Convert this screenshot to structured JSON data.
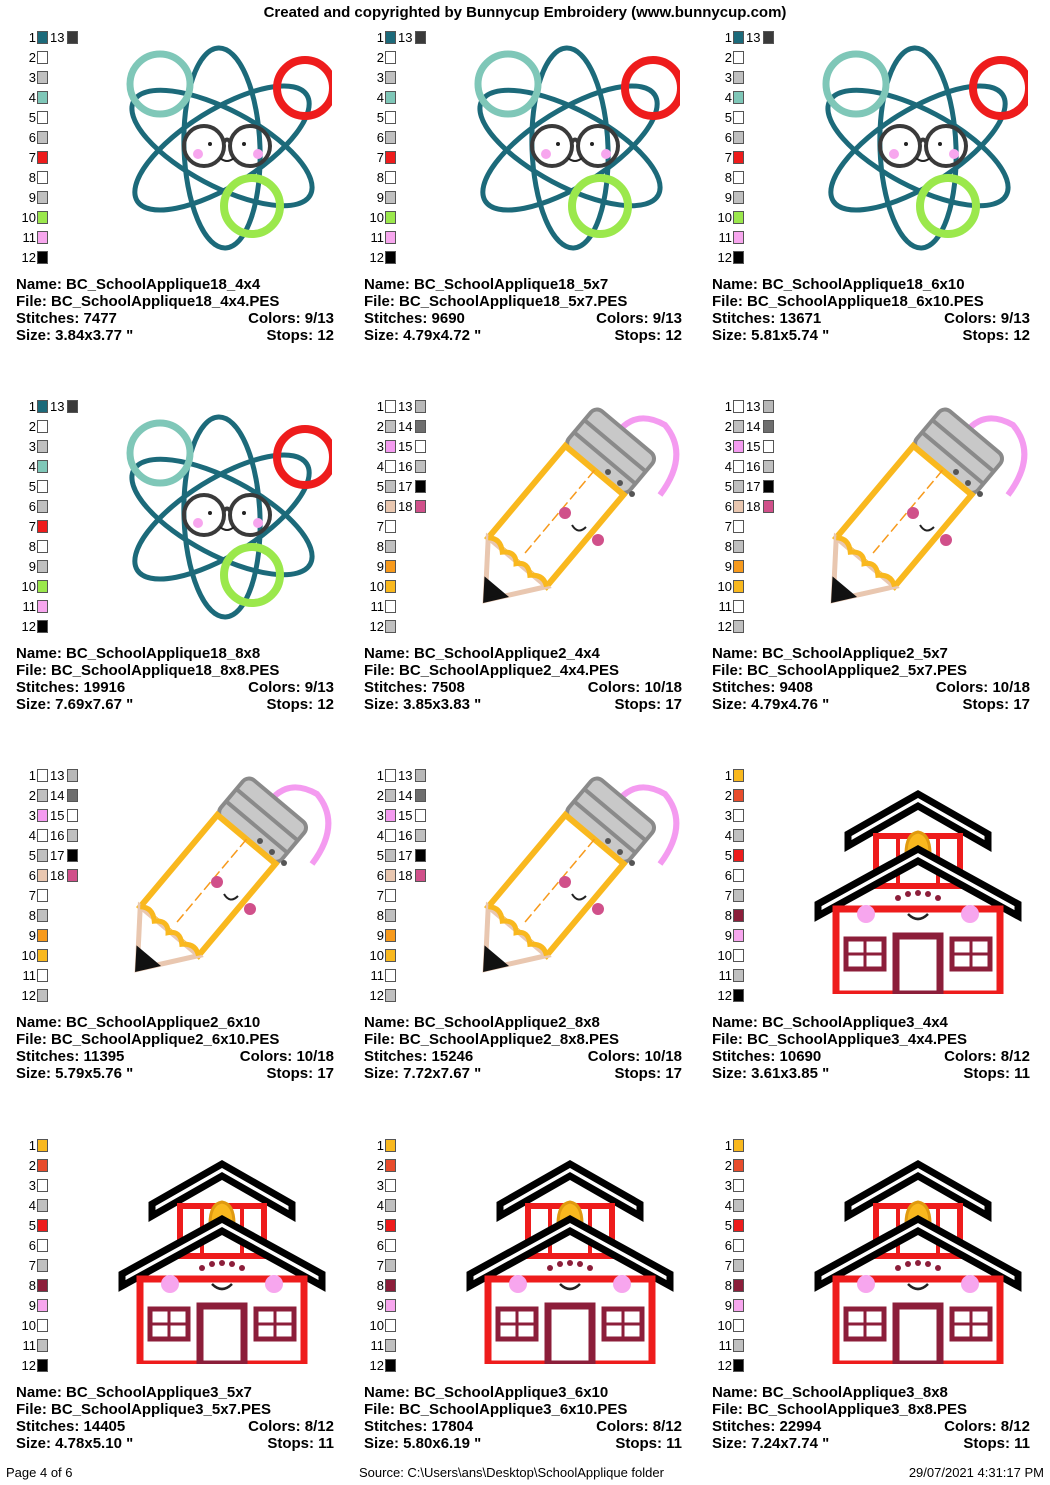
{
  "header": "Created and copyrighted by Bunnycup Embroidery (www.bunnycup.com)",
  "labels": {
    "name": "Name:",
    "file": "File:",
    "stitches": "Stitches:",
    "colors": "Colors:",
    "size": "Size:",
    "stops": "Stops:"
  },
  "palettes": {
    "atom": [
      {
        "n": "1",
        "c": "#1c6a7a",
        "n2": "13",
        "c2": "#3a3a3a"
      },
      {
        "n": "2",
        "c": "#ffffff"
      },
      {
        "n": "3",
        "c": "#c0c0c0"
      },
      {
        "n": "4",
        "c": "#7fc7b8"
      },
      {
        "n": "5",
        "c": "#ffffff"
      },
      {
        "n": "6",
        "c": "#c0c0c0"
      },
      {
        "n": "7",
        "c": "#ee1c1c"
      },
      {
        "n": "8",
        "c": "#ffffff"
      },
      {
        "n": "9",
        "c": "#c0c0c0"
      },
      {
        "n": "10",
        "c": "#9be84c"
      },
      {
        "n": "11",
        "c": "#f7a6ee"
      },
      {
        "n": "12",
        "c": "#000000"
      }
    ],
    "pencil": [
      {
        "n": "1",
        "c": "#ffffff",
        "n2": "13",
        "c2": "#b8b8b8"
      },
      {
        "n": "2",
        "c": "#c0c0c0",
        "n2": "14",
        "c2": "#6e6e6e"
      },
      {
        "n": "3",
        "c": "#f49bf0",
        "n2": "15",
        "c2": "#ffffff"
      },
      {
        "n": "4",
        "c": "#ffffff",
        "n2": "16",
        "c2": "#c0c0c0"
      },
      {
        "n": "5",
        "c": "#c0c0c0",
        "n2": "17",
        "c2": "#000000"
      },
      {
        "n": "6",
        "c": "#e9c7b0",
        "n2": "18",
        "c2": "#d0508a"
      },
      {
        "n": "7",
        "c": "#ffffff"
      },
      {
        "n": "8",
        "c": "#c0c0c0"
      },
      {
        "n": "9",
        "c": "#f79a1c"
      },
      {
        "n": "10",
        "c": "#f9b81e"
      },
      {
        "n": "11",
        "c": "#ffffff"
      },
      {
        "n": "12",
        "c": "#c0c0c0"
      }
    ],
    "school": [
      {
        "n": "1",
        "c": "#f9b81e"
      },
      {
        "n": "2",
        "c": "#e84c2c"
      },
      {
        "n": "3",
        "c": "#ffffff"
      },
      {
        "n": "4",
        "c": "#c0c0c0"
      },
      {
        "n": "5",
        "c": "#ee1c1c"
      },
      {
        "n": "6",
        "c": "#ffffff"
      },
      {
        "n": "7",
        "c": "#c0c0c0"
      },
      {
        "n": "8",
        "c": "#8c1e3a"
      },
      {
        "n": "9",
        "c": "#f7a6ee"
      },
      {
        "n": "10",
        "c": "#ffffff"
      },
      {
        "n": "11",
        "c": "#c0c0c0"
      },
      {
        "n": "12",
        "c": "#000000"
      }
    ]
  },
  "designs": [
    {
      "art": "atom",
      "name": "BC_SchoolApplique18_4x4",
      "file": "BC_SchoolApplique18_4x4.PES",
      "stitches": "7477",
      "colors": "9/13",
      "size": "3.84x3.77 \"",
      "stops": "12"
    },
    {
      "art": "atom",
      "name": "BC_SchoolApplique18_5x7",
      "file": "BC_SchoolApplique18_5x7.PES",
      "stitches": "9690",
      "colors": "9/13",
      "size": "4.79x4.72 \"",
      "stops": "12"
    },
    {
      "art": "atom",
      "name": "BC_SchoolApplique18_6x10",
      "file": "BC_SchoolApplique18_6x10.PES",
      "stitches": "13671",
      "colors": "9/13",
      "size": "5.81x5.74 \"",
      "stops": "12"
    },
    {
      "art": "atom",
      "name": "BC_SchoolApplique18_8x8",
      "file": "BC_SchoolApplique18_8x8.PES",
      "stitches": "19916",
      "colors": "9/13",
      "size": "7.69x7.67 \"",
      "stops": "12"
    },
    {
      "art": "pencil",
      "name": "BC_SchoolApplique2_4x4",
      "file": "BC_SchoolApplique2_4x4.PES",
      "stitches": "7508",
      "colors": "10/18",
      "size": "3.85x3.83 \"",
      "stops": "17"
    },
    {
      "art": "pencil",
      "name": "BC_SchoolApplique2_5x7",
      "file": "BC_SchoolApplique2_5x7.PES",
      "stitches": "9408",
      "colors": "10/18",
      "size": "4.79x4.76 \"",
      "stops": "17"
    },
    {
      "art": "pencil",
      "name": "BC_SchoolApplique2_6x10",
      "file": "BC_SchoolApplique2_6x10.PES",
      "stitches": "11395",
      "colors": "10/18",
      "size": "5.79x5.76 \"",
      "stops": "17"
    },
    {
      "art": "pencil",
      "name": "BC_SchoolApplique2_8x8",
      "file": "BC_SchoolApplique2_8x8.PES",
      "stitches": "15246",
      "colors": "10/18",
      "size": "7.72x7.67 \"",
      "stops": "17"
    },
    {
      "art": "school",
      "name": "BC_SchoolApplique3_4x4",
      "file": "BC_SchoolApplique3_4x4.PES",
      "stitches": "10690",
      "colors": "8/12",
      "size": "3.61x3.85 \"",
      "stops": "11"
    },
    {
      "art": "school",
      "name": "BC_SchoolApplique3_5x7",
      "file": "BC_SchoolApplique3_5x7.PES",
      "stitches": "14405",
      "colors": "8/12",
      "size": "4.78x5.10 \"",
      "stops": "11"
    },
    {
      "art": "school",
      "name": "BC_SchoolApplique3_6x10",
      "file": "BC_SchoolApplique3_6x10.PES",
      "stitches": "17804",
      "colors": "8/12",
      "size": "5.80x6.19 \"",
      "stops": "11"
    },
    {
      "art": "school",
      "name": "BC_SchoolApplique3_8x8",
      "file": "BC_SchoolApplique3_8x8.PES",
      "stitches": "22994",
      "colors": "8/12",
      "size": "7.24x7.74 \"",
      "stops": "11"
    }
  ],
  "footer": {
    "page": "Page 4 of 6",
    "source": "Source: C:\\Users\\ans\\Desktop\\SchoolApplique folder",
    "datetime": "29/07/2021 4:31:17 PM"
  }
}
